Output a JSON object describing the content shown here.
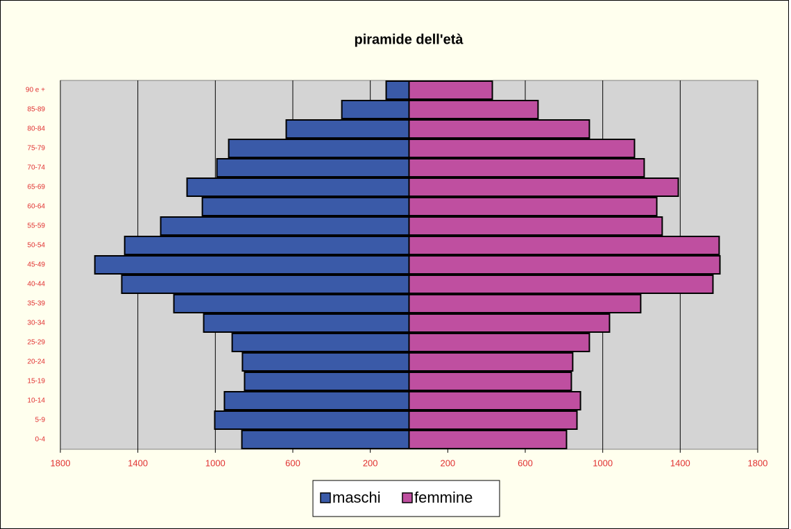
{
  "chart_data": {
    "type": "pyramid",
    "title": "piramide dell'età",
    "categories": [
      "0-4",
      "5-9",
      "10-14",
      "15-19",
      "20-24",
      "25-29",
      "30-34",
      "35-39",
      "40-44",
      "45-49",
      "50-54",
      "55-59",
      "60-64",
      "65-69",
      "70-74",
      "75-79",
      "80-84",
      "85-89",
      "90 e +"
    ],
    "series": [
      {
        "name": "maschi",
        "color": "#3a5aa8",
        "values": [
          863,
          1003,
          953,
          849,
          860,
          913,
          1060,
          1214,
          1483,
          1622,
          1468,
          1282,
          1067,
          1146,
          992,
          931,
          634,
          347,
          118
        ]
      },
      {
        "name": "femmine",
        "color": "#bf4fa0",
        "values": [
          813,
          867,
          885,
          838,
          845,
          931,
          1035,
          1196,
          1569,
          1605,
          1601,
          1307,
          1279,
          1390,
          1214,
          1164,
          931,
          666,
          430
        ]
      }
    ],
    "xlim": [
      -1800,
      1800
    ],
    "xticks": [
      {
        "value": -1800,
        "label": "1800"
      },
      {
        "value": -1400,
        "label": "1400"
      },
      {
        "value": -1000,
        "label": "1000"
      },
      {
        "value": -600,
        "label": "600"
      },
      {
        "value": -200,
        "label": "200"
      },
      200,
      600,
      1000,
      1400,
      1800
    ],
    "grid": true
  }
}
